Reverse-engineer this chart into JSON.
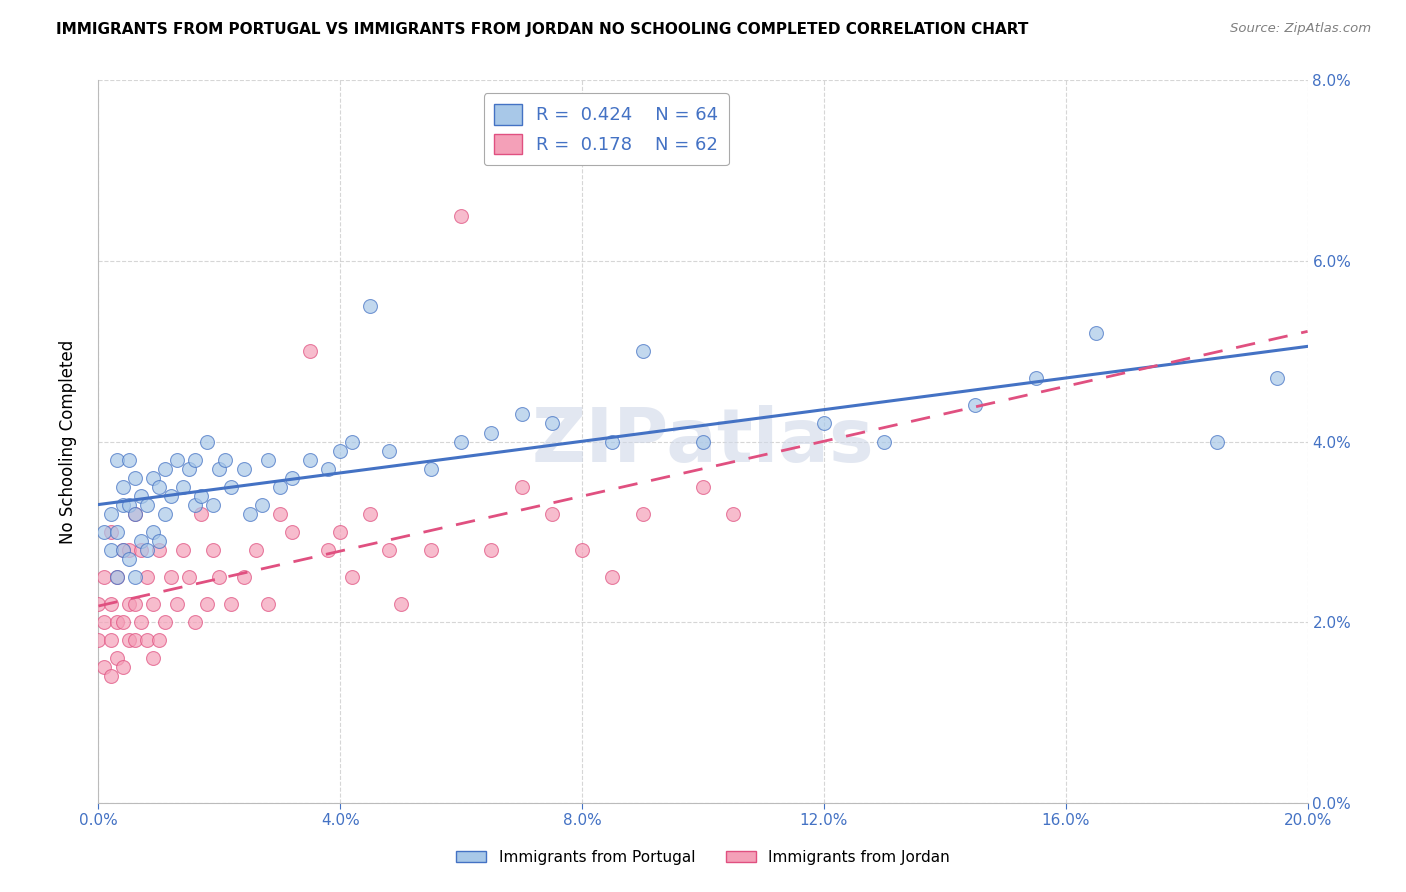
{
  "title": "IMMIGRANTS FROM PORTUGAL VS IMMIGRANTS FROM JORDAN NO SCHOOLING COMPLETED CORRELATION CHART",
  "source": "Source: ZipAtlas.com",
  "ylabel": "No Schooling Completed",
  "xlim": [
    0.0,
    0.2
  ],
  "ylim": [
    0.0,
    0.08
  ],
  "xticks": [
    0.0,
    0.04,
    0.08,
    0.12,
    0.16,
    0.2
  ],
  "yticks": [
    0.0,
    0.02,
    0.04,
    0.06,
    0.08
  ],
  "xtick_labels": [
    "0.0%",
    "4.0%",
    "8.0%",
    "12.0%",
    "16.0%",
    "20.0%"
  ],
  "ytick_labels_right": [
    "0.0%",
    "2.0%",
    "4.0%",
    "6.0%",
    "8.0%"
  ],
  "legend_r_portugal": "0.424",
  "legend_n_portugal": "64",
  "legend_r_jordan": "0.178",
  "legend_n_jordan": "62",
  "color_portugal": "#A8C8E8",
  "color_jordan": "#F4A0B8",
  "color_line_portugal": "#4472C4",
  "color_line_jordan": "#E05080",
  "color_axis_labels": "#4472C4",
  "watermark": "ZIPatlas",
  "background_color": "#FFFFFF",
  "grid_color": "#CCCCCC",
  "portugal_x": [
    0.001,
    0.002,
    0.002,
    0.003,
    0.003,
    0.003,
    0.004,
    0.004,
    0.004,
    0.005,
    0.005,
    0.005,
    0.006,
    0.006,
    0.006,
    0.007,
    0.007,
    0.008,
    0.008,
    0.009,
    0.009,
    0.01,
    0.01,
    0.011,
    0.011,
    0.012,
    0.013,
    0.014,
    0.015,
    0.016,
    0.016,
    0.017,
    0.018,
    0.019,
    0.02,
    0.021,
    0.022,
    0.024,
    0.025,
    0.027,
    0.028,
    0.03,
    0.032,
    0.035,
    0.038,
    0.04,
    0.042,
    0.045,
    0.048,
    0.055,
    0.06,
    0.065,
    0.07,
    0.075,
    0.085,
    0.09,
    0.1,
    0.12,
    0.13,
    0.145,
    0.155,
    0.165,
    0.185,
    0.195
  ],
  "portugal_y": [
    0.03,
    0.028,
    0.032,
    0.025,
    0.03,
    0.038,
    0.028,
    0.033,
    0.035,
    0.027,
    0.033,
    0.038,
    0.025,
    0.032,
    0.036,
    0.029,
    0.034,
    0.028,
    0.033,
    0.03,
    0.036,
    0.029,
    0.035,
    0.032,
    0.037,
    0.034,
    0.038,
    0.035,
    0.037,
    0.033,
    0.038,
    0.034,
    0.04,
    0.033,
    0.037,
    0.038,
    0.035,
    0.037,
    0.032,
    0.033,
    0.038,
    0.035,
    0.036,
    0.038,
    0.037,
    0.039,
    0.04,
    0.055,
    0.039,
    0.037,
    0.04,
    0.041,
    0.043,
    0.042,
    0.04,
    0.05,
    0.04,
    0.042,
    0.04,
    0.044,
    0.047,
    0.052,
    0.04,
    0.047
  ],
  "jordan_x": [
    0.0,
    0.0,
    0.001,
    0.001,
    0.001,
    0.002,
    0.002,
    0.002,
    0.002,
    0.003,
    0.003,
    0.003,
    0.004,
    0.004,
    0.004,
    0.005,
    0.005,
    0.005,
    0.006,
    0.006,
    0.006,
    0.007,
    0.007,
    0.008,
    0.008,
    0.009,
    0.009,
    0.01,
    0.01,
    0.011,
    0.012,
    0.013,
    0.014,
    0.015,
    0.016,
    0.017,
    0.018,
    0.019,
    0.02,
    0.022,
    0.024,
    0.026,
    0.028,
    0.03,
    0.032,
    0.035,
    0.038,
    0.04,
    0.042,
    0.045,
    0.048,
    0.05,
    0.055,
    0.06,
    0.065,
    0.07,
    0.075,
    0.08,
    0.085,
    0.09,
    0.1,
    0.105
  ],
  "jordan_y": [
    0.018,
    0.022,
    0.015,
    0.02,
    0.025,
    0.014,
    0.018,
    0.022,
    0.03,
    0.016,
    0.02,
    0.025,
    0.015,
    0.02,
    0.028,
    0.018,
    0.022,
    0.028,
    0.018,
    0.022,
    0.032,
    0.02,
    0.028,
    0.018,
    0.025,
    0.016,
    0.022,
    0.018,
    0.028,
    0.02,
    0.025,
    0.022,
    0.028,
    0.025,
    0.02,
    0.032,
    0.022,
    0.028,
    0.025,
    0.022,
    0.025,
    0.028,
    0.022,
    0.032,
    0.03,
    0.05,
    0.028,
    0.03,
    0.025,
    0.032,
    0.028,
    0.022,
    0.028,
    0.065,
    0.028,
    0.035,
    0.032,
    0.028,
    0.025,
    0.032,
    0.035,
    0.032
  ]
}
